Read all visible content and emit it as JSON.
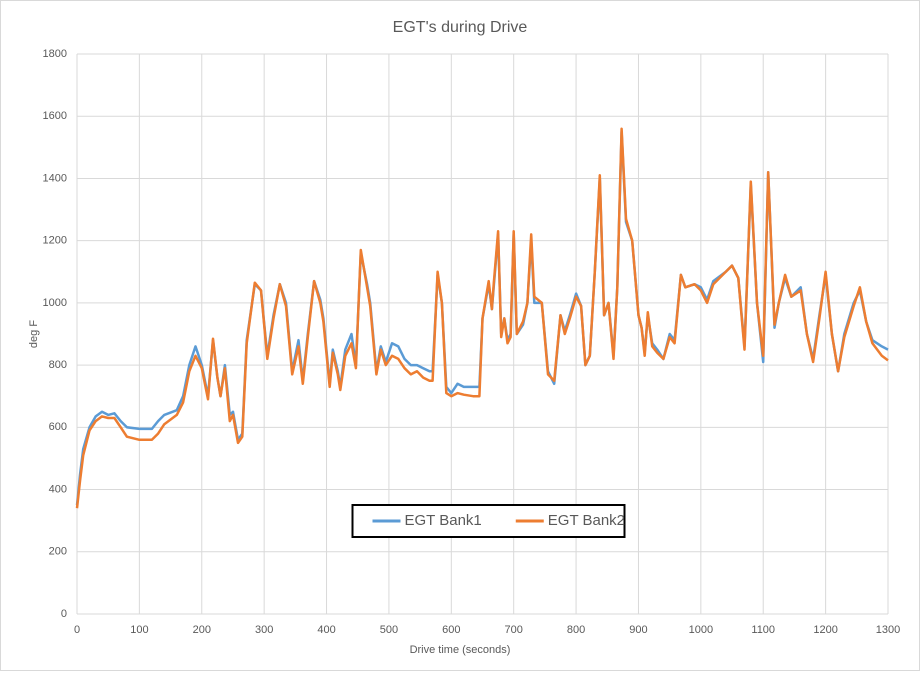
{
  "chart_data": {
    "type": "line",
    "title": "EGT's during Drive",
    "xlabel": "Drive time (seconds)",
    "ylabel": "deg F",
    "x": [
      0,
      5,
      10,
      20,
      30,
      40,
      50,
      60,
      70,
      80,
      100,
      120,
      130,
      140,
      160,
      170,
      180,
      190,
      200,
      210,
      218,
      225,
      230,
      237,
      245,
      250,
      258,
      265,
      272,
      285,
      295,
      305,
      315,
      325,
      335,
      345,
      355,
      362,
      370,
      380,
      390,
      395,
      405,
      410,
      418,
      422,
      430,
      440,
      447,
      455,
      465,
      470,
      480,
      487,
      495,
      505,
      515,
      525,
      535,
      545,
      555,
      565,
      570,
      578,
      585,
      592,
      600,
      610,
      620,
      635,
      645,
      650,
      660,
      665,
      668,
      675,
      680,
      685,
      690,
      695,
      700,
      705,
      715,
      722,
      728,
      733,
      745,
      755,
      765,
      775,
      782,
      790,
      800,
      808,
      815,
      822,
      830,
      838,
      845,
      852,
      860,
      866,
      873,
      880,
      890,
      900,
      905,
      910,
      915,
      922,
      930,
      940,
      950,
      958,
      968,
      975,
      990,
      1000,
      1010,
      1020,
      1040,
      1050,
      1060,
      1070,
      1080,
      1090,
      1100,
      1108,
      1118,
      1125,
      1135,
      1145,
      1160,
      1170,
      1180,
      1190,
      1200,
      1210,
      1220,
      1230,
      1245,
      1255,
      1265,
      1275,
      1290,
      1300
    ],
    "series": [
      {
        "name": "EGT Bank1",
        "color": "#5b9bd5",
        "values": [
          350,
          450,
          530,
          600,
          635,
          650,
          640,
          645,
          620,
          600,
          595,
          595,
          620,
          640,
          655,
          700,
          800,
          860,
          800,
          700,
          880,
          760,
          700,
          800,
          640,
          650,
          560,
          580,
          880,
          1060,
          1040,
          830,
          960,
          1060,
          1000,
          780,
          880,
          750,
          900,
          1070,
          1010,
          950,
          740,
          850,
          780,
          730,
          850,
          900,
          800,
          1160,
          1060,
          1000,
          780,
          860,
          810,
          870,
          860,
          820,
          800,
          800,
          790,
          780,
          780,
          1090,
          1000,
          730,
          710,
          740,
          730,
          730,
          730,
          950,
          1060,
          980,
          1050,
          1220,
          900,
          950,
          880,
          900,
          1220,
          900,
          930,
          1000,
          1200,
          1000,
          1000,
          780,
          740,
          960,
          910,
          960,
          1030,
          990,
          800,
          830,
          1100,
          1400,
          960,
          1000,
          830,
          1050,
          1550,
          1260,
          1200,
          960,
          920,
          840,
          960,
          870,
          850,
          820,
          900,
          880,
          1090,
          1050,
          1060,
          1050,
          1010,
          1070,
          1100,
          1120,
          1080,
          860,
          1380,
          1000,
          810,
          1420,
          920,
          1000,
          1080,
          1020,
          1050,
          900,
          820,
          960,
          1090,
          900,
          780,
          900,
          1000,
          1040,
          940,
          880,
          860,
          850
        ]
      },
      {
        "name": "EGT Bank2",
        "color": "#ed7d31",
        "values": [
          340,
          430,
          510,
          590,
          620,
          635,
          630,
          630,
          600,
          570,
          560,
          560,
          580,
          610,
          640,
          680,
          780,
          830,
          790,
          690,
          885,
          760,
          700,
          790,
          620,
          640,
          550,
          570,
          870,
          1065,
          1040,
          820,
          950,
          1060,
          990,
          770,
          860,
          740,
          890,
          1070,
          1000,
          940,
          730,
          840,
          770,
          720,
          830,
          870,
          790,
          1170,
          1050,
          990,
          770,
          850,
          800,
          830,
          820,
          790,
          770,
          780,
          760,
          750,
          750,
          1100,
          1000,
          710,
          700,
          710,
          705,
          700,
          700,
          950,
          1070,
          980,
          1060,
          1230,
          890,
          950,
          870,
          890,
          1230,
          900,
          940,
          1000,
          1220,
          1020,
          1000,
          770,
          750,
          960,
          900,
          950,
          1020,
          990,
          800,
          830,
          1100,
          1410,
          960,
          1000,
          820,
          1050,
          1560,
          1270,
          1200,
          960,
          920,
          830,
          970,
          860,
          840,
          820,
          890,
          870,
          1090,
          1050,
          1060,
          1040,
          1000,
          1060,
          1100,
          1120,
          1080,
          850,
          1390,
          1000,
          830,
          1420,
          930,
          1000,
          1090,
          1020,
          1040,
          900,
          810,
          950,
          1100,
          900,
          780,
          890,
          990,
          1050,
          940,
          870,
          830,
          815
        ]
      }
    ],
    "xlim": [
      0,
      1300
    ],
    "xticks": [
      0,
      100,
      200,
      300,
      400,
      500,
      600,
      700,
      800,
      900,
      1000,
      1100,
      1200,
      1300
    ],
    "ylim": [
      0,
      1800
    ],
    "yticks": [
      0,
      200,
      400,
      600,
      800,
      1000,
      1200,
      1400,
      1600,
      1800
    ],
    "grid": true,
    "legend_position": "lower center"
  }
}
